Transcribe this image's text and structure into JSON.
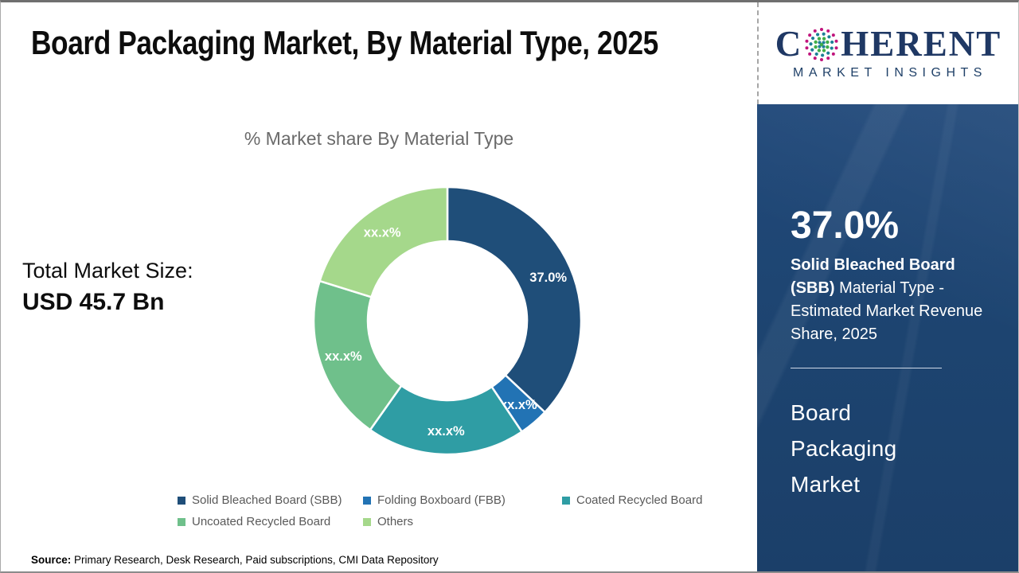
{
  "header": {
    "title": "Board Packaging Market, By Material Type, 2025"
  },
  "logo": {
    "line1_prefix": "C",
    "line1_suffix": "HERENT",
    "line2": "MARKET INSIGHTS",
    "globe_icon_colors": {
      "outer_ring": "#c0147c",
      "mid_ring": "#1c7f97",
      "inner_ring": "#3fae49",
      "core": "#1c7f97"
    },
    "navy": "#1f3864"
  },
  "total_market": {
    "label": "Total Market Size:",
    "value": "USD 45.7 Bn"
  },
  "chart_data": {
    "type": "pie",
    "donut": true,
    "title": "% Market share By Material Type",
    "start_angle_deg": 0,
    "direction": "clockwise",
    "legend_position": "bottom",
    "inner_radius_ratio": 0.6,
    "segments": [
      {
        "label": "Solid Bleached Board (SBB)",
        "display_value": "37.0%",
        "value": 37.0,
        "color": "#1f4e79",
        "masked": false
      },
      {
        "label": "Folding Boxboard (FBB)",
        "display_value": "xx.x%",
        "value": 3.6,
        "color": "#2273b4",
        "masked": true
      },
      {
        "label": "Coated Recycled Board",
        "display_value": "xx.x%",
        "value": 19.2,
        "color": "#2f9da4",
        "masked": true
      },
      {
        "label": "Uncoated Recycled Board",
        "display_value": "xx.x%",
        "value": 20.0,
        "color": "#6fc08b",
        "masked": true
      },
      {
        "label": "Others",
        "display_value": "xx.x%",
        "value": 20.2,
        "color": "#a5d88b",
        "masked": true
      }
    ]
  },
  "sidebar": {
    "background": "#1d4470",
    "stat_value": "37.0%",
    "stat_label_bold": "Solid Bleached Board (SBB)",
    "stat_label_rest": " Material Type - Estimated Market Revenue Share, 2025",
    "market_name": "Board Packaging Market"
  },
  "source": {
    "label": "Source:",
    "text": " Primary Research, Desk Research, Paid subscriptions, CMI Data Repository"
  }
}
